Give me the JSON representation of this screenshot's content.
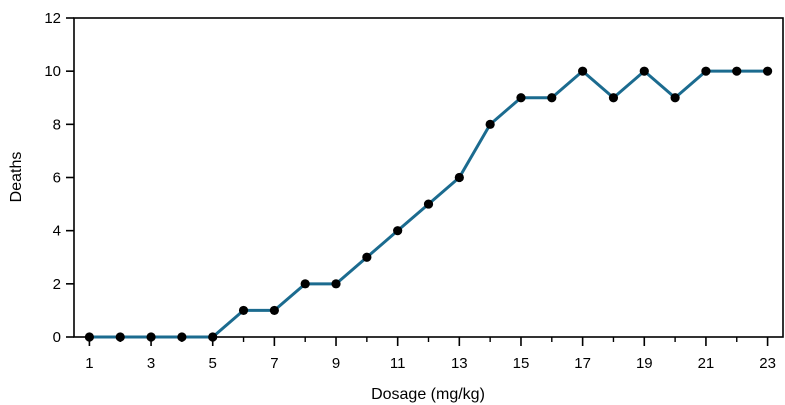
{
  "chart_data": {
    "type": "line",
    "title": "",
    "xlabel": "Dosage (mg/kg)",
    "ylabel": "Deaths",
    "x": [
      1,
      2,
      3,
      4,
      5,
      6,
      7,
      8,
      9,
      10,
      11,
      12,
      13,
      14,
      15,
      16,
      17,
      18,
      19,
      20,
      21,
      22,
      23
    ],
    "series": [
      {
        "values": [
          0,
          0,
          0,
          0,
          0,
          1,
          1,
          2,
          2,
          3,
          4,
          5,
          6,
          8,
          9,
          9,
          10,
          9,
          10,
          9,
          10,
          10,
          10
        ]
      }
    ],
    "xlim": [
      0.5,
      23.5
    ],
    "ylim": [
      0,
      12
    ],
    "xticks": [
      1,
      3,
      5,
      7,
      9,
      11,
      13,
      15,
      17,
      19,
      21,
      23
    ],
    "xticks_minor": [
      2,
      4,
      6,
      8,
      10,
      12,
      14,
      16,
      18,
      20,
      22
    ],
    "yticks": [
      0,
      2,
      4,
      6,
      8,
      10,
      12
    ],
    "grid": false,
    "line_color": "#1b6b8f",
    "marker_color": "#000000"
  }
}
